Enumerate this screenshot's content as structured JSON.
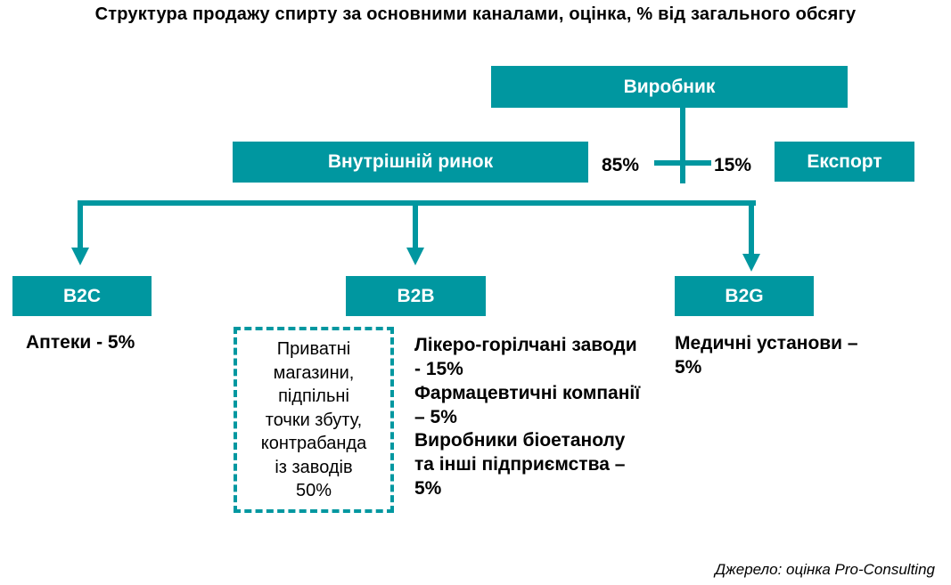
{
  "title": "Структура продажу спирту за основними каналами, оцінка, % від загального обсягу",
  "nodes": {
    "producer": "Виробник",
    "domestic": "Внутрішній ринок",
    "export": "Експорт",
    "b2c": "B2C",
    "b2b": "B2B",
    "b2g": "B2G"
  },
  "shares": {
    "domestic_pct": "85%",
    "export_pct": "15%"
  },
  "b2c_items": [
    "Аптеки - 5%"
  ],
  "b2b_items": [
    [
      "Лікеро-горілчані заводи",
      "- 15%"
    ],
    [
      "Фармацевтичні компанії",
      "– 5%"
    ],
    [
      "Виробники біоетанолу",
      "та інші підприємства –",
      "5%"
    ]
  ],
  "b2g_items": [
    [
      "Медичні установи –",
      "5%"
    ]
  ],
  "informal": [
    "Приватні",
    "магазини,",
    "підпільні",
    "точки збуту,",
    "контрабанда",
    "із заводів",
    "50%"
  ],
  "source": "Джерело: оцінка Pro-Consulting",
  "colors": {
    "accent": "#0097a0"
  }
}
